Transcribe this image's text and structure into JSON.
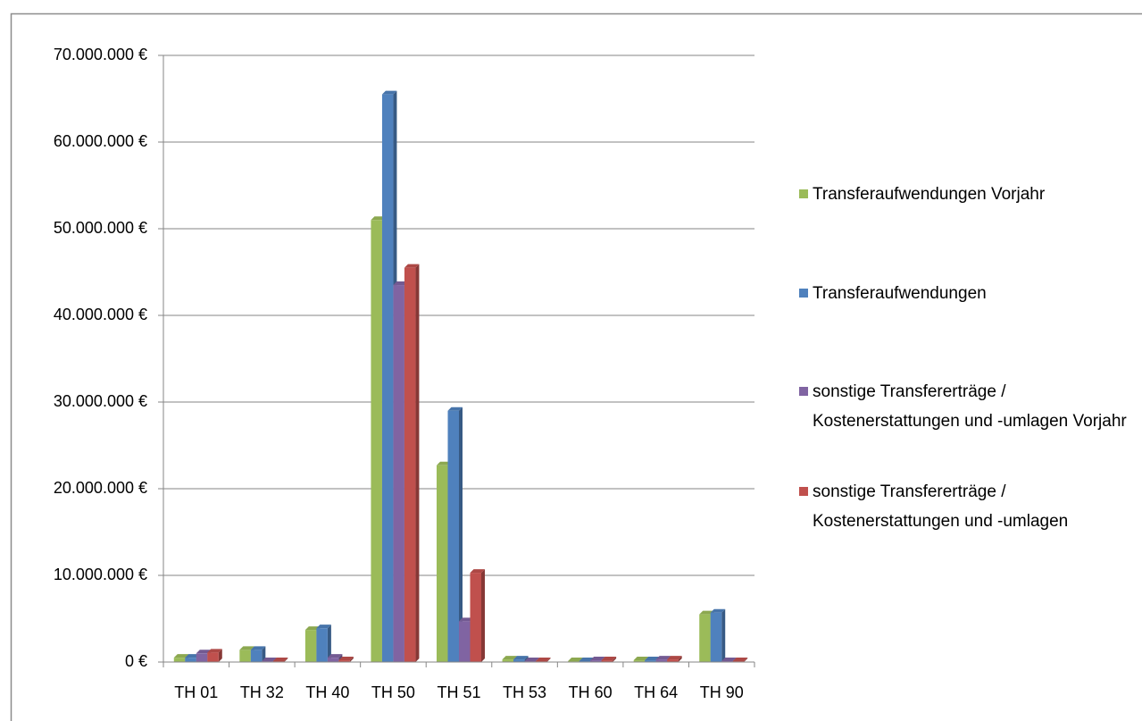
{
  "chart_data": {
    "type": "bar",
    "categories": [
      "TH 01",
      "TH 32",
      "TH 40",
      "TH 50",
      "TH 51",
      "TH 53",
      "TH 60",
      "TH 64",
      "TH 90"
    ],
    "series": [
      {
        "name": "Transferaufwendungen Vorjahr",
        "color": "#9bbb59",
        "values": [
          500000,
          1400000,
          3700000,
          51000000,
          22700000,
          300000,
          100000,
          200000,
          5500000
        ]
      },
      {
        "name": "Transferaufwendungen",
        "color": "#4f81bd",
        "values": [
          500000,
          1400000,
          3900000,
          65500000,
          29000000,
          300000,
          100000,
          200000,
          5700000
        ]
      },
      {
        "name": "sonstige Transfererträge / Kostenerstattungen und -umlagen Vorjahr",
        "color": "#8064a2",
        "values": [
          1000000,
          100000,
          500000,
          43500000,
          4700000,
          100000,
          200000,
          300000,
          100000
        ]
      },
      {
        "name": "sonstige Transfererträge / Kostenerstattungen und -umlagen",
        "color": "#c0504d",
        "values": [
          1100000,
          100000,
          200000,
          45500000,
          10300000,
          100000,
          200000,
          300000,
          100000
        ]
      }
    ],
    "ylim": [
      0,
      70000000
    ],
    "yticks": [
      {
        "value": 0,
        "label": "0 €"
      },
      {
        "value": 10000000,
        "label": "10.000.000 €"
      },
      {
        "value": 20000000,
        "label": "20.000.000 €"
      },
      {
        "value": 30000000,
        "label": "30.000.000 €"
      },
      {
        "value": 40000000,
        "label": "40.000.000 €"
      },
      {
        "value": 50000000,
        "label": "50.000.000 €"
      },
      {
        "value": 60000000,
        "label": "60.000.000 €"
      },
      {
        "value": 70000000,
        "label": "70.000.000 €"
      }
    ],
    "grid": true,
    "legend": "right"
  }
}
